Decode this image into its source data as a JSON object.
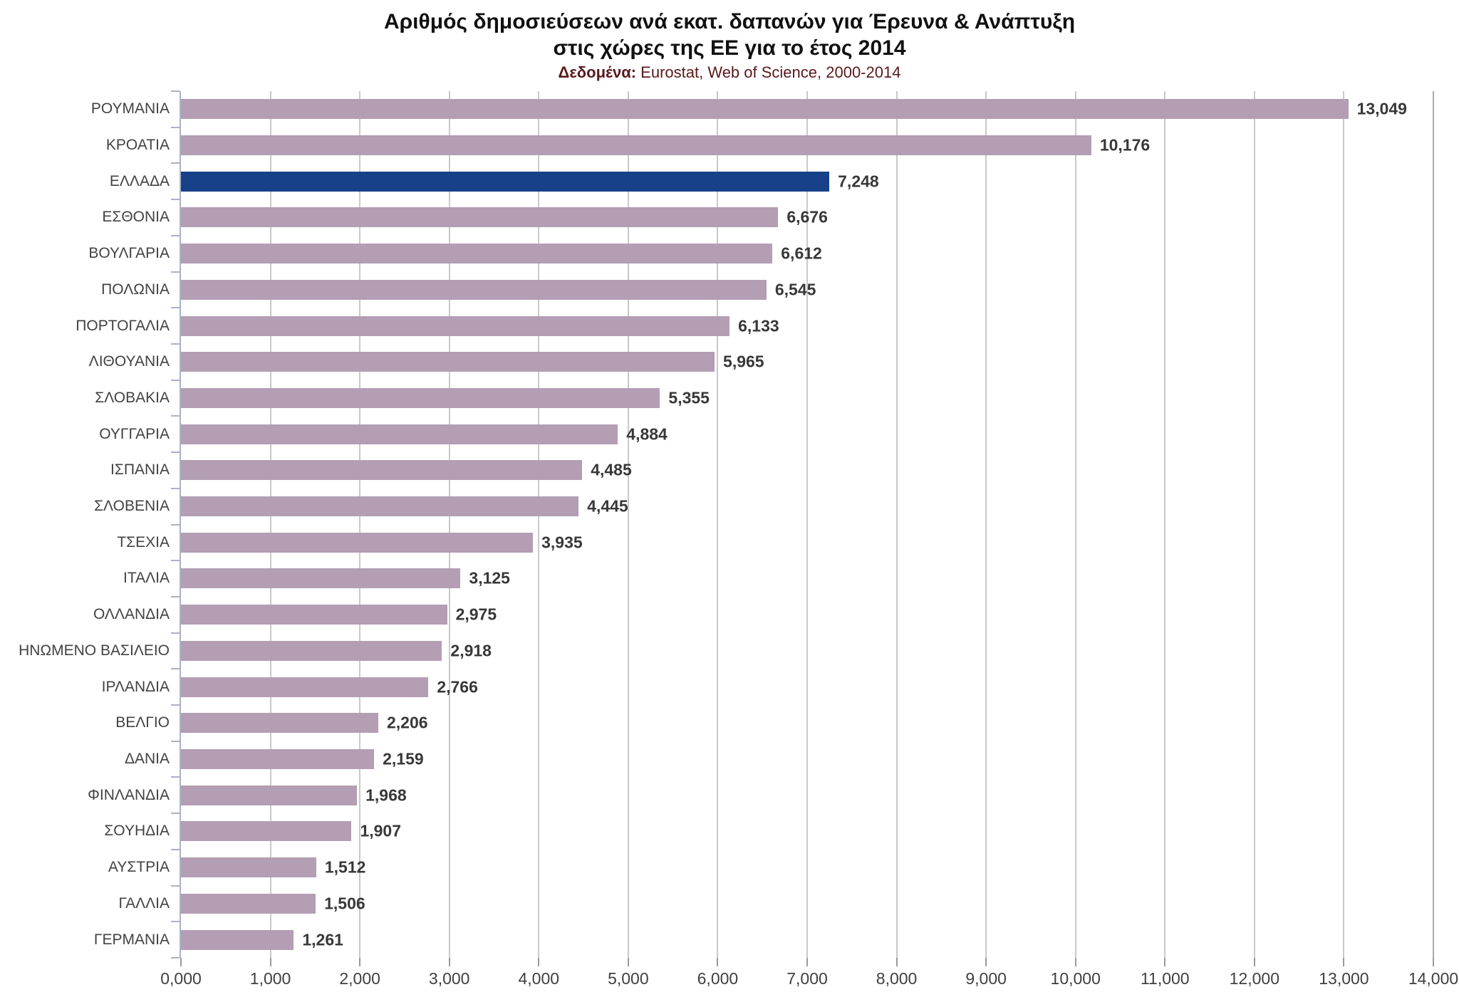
{
  "title": {
    "line1": "Αριθμός δημοσιεύσεων ανά εκατ. δαπανών για Έρευνα & Ανάπτυξη",
    "line2": "στις χώρες της ΕΕ για το έτος 2014"
  },
  "subtitle": {
    "label": "Δεδομένα:",
    "text": " Eurostat, Web of Science, 2000-2014"
  },
  "chart_data": {
    "type": "bar",
    "orientation": "horizontal",
    "title": "Αριθμός δημοσιεύσεων ανά εκατ. δαπανών για Έρευνα & Ανάπτυξη στις χώρες της ΕΕ για το έτος 2014",
    "subtitle": "Δεδομένα: Eurostat, Web of Science, 2000-2014",
    "categories": [
      "ΡΟΥΜΑΝΙΑ",
      "ΚΡΟΑΤΙΑ",
      "ΕΛΛΑΔΑ",
      "ΕΣΘΟΝΙΑ",
      "ΒΟΥΛΓΑΡΙΑ",
      "ΠΟΛΩΝΙΑ",
      "ΠΟΡΤΟΓΑΛΙΑ",
      "ΛΙΘΟΥΑΝΙΑ",
      "ΣΛΟΒΑΚΙΑ",
      "ΟΥΓΓΑΡΙΑ",
      "ΙΣΠΑΝΙΑ",
      "ΣΛΟΒΕΝΙΑ",
      "ΤΣΕΧΙΑ",
      "ΙΤΑΛΙΑ",
      "ΟΛΛΑΝΔΙΑ",
      "ΗΝΩΜΕΝΟ ΒΑΣΙΛΕΙΟ",
      "ΙΡΛΑΝΔΙΑ",
      "ΒΕΛΓΙΟ",
      "ΔΑΝΙΑ",
      "ΦΙΝΛΑΝΔΙΑ",
      "ΣΟΥΗΔΙΑ",
      "ΑΥΣΤΡΙΑ",
      "ΓΑΛΛΙΑ",
      "ΓΕΡΜΑΝΙΑ"
    ],
    "values": [
      13049,
      10176,
      7248,
      6676,
      6612,
      6545,
      6133,
      5965,
      5355,
      4884,
      4485,
      4445,
      3935,
      3125,
      2975,
      2918,
      2766,
      2206,
      2159,
      1968,
      1907,
      1512,
      1506,
      1261
    ],
    "value_labels": [
      "13,049",
      "10,176",
      "7,248",
      "6,676",
      "6,612",
      "6,545",
      "6,133",
      "5,965",
      "5,355",
      "4,884",
      "4,485",
      "4,445",
      "3,935",
      "3,125",
      "2,975",
      "2,918",
      "2,766",
      "2,206",
      "2,159",
      "1,968",
      "1,907",
      "1,512",
      "1,506",
      "1,261"
    ],
    "highlight_category": "ΕΛΛΑΔΑ",
    "highlight_index": 2,
    "xlim": [
      0,
      14000
    ],
    "x_tick_step": 1000,
    "x_tick_labels": [
      "0,000",
      "1,000",
      "2,000",
      "3,000",
      "4,000",
      "5,000",
      "6,000",
      "7,000",
      "8,000",
      "9,000",
      "10,000",
      "11,000",
      "12,000",
      "13,000",
      "14,000"
    ],
    "grid": true,
    "legend": false,
    "colors": {
      "bar": "#b39eb4",
      "highlight_bar": "#164189",
      "gridline": "#c9c9c9",
      "axis": "#a9b2c9",
      "x_tick": "#9a9a9a",
      "title": "#111111",
      "subtitle": "#5a191c",
      "category_label": "#424242",
      "value_label": "#383838"
    }
  }
}
